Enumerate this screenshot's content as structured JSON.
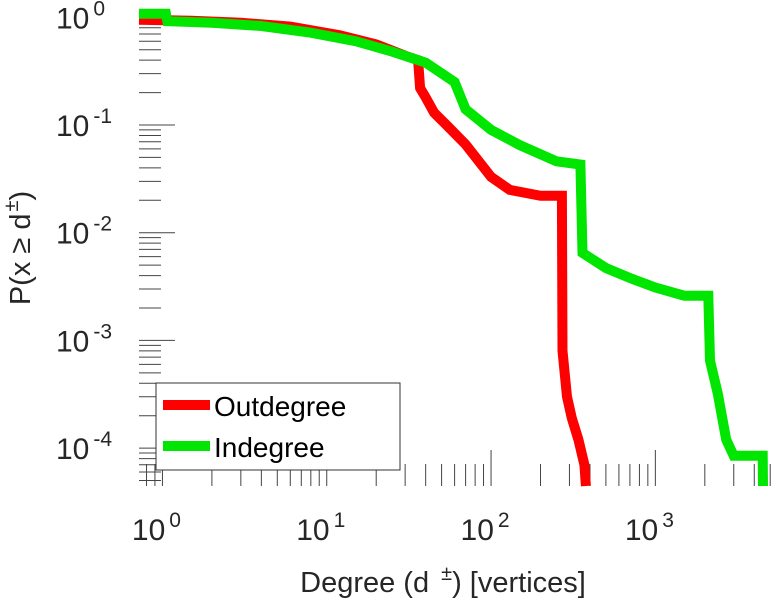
{
  "chart_data": {
    "type": "line",
    "xlabel": {
      "base": "Degree (d",
      "sup": "±",
      "tail": ") [vertices]"
    },
    "ylabel": {
      "base": "P(x ≥ d",
      "sup": "±",
      "tail": ")"
    },
    "x_scale": "log",
    "y_scale": "log",
    "xlim": [
      0.72,
      5500
    ],
    "ylim": [
      4.45e-05,
      1.22
    ],
    "grid": false,
    "legend_position": "bottom-left",
    "x_ticks": [
      {
        "value": 1,
        "base": "10",
        "exp": "0"
      },
      {
        "value": 10,
        "base": "10",
        "exp": "1"
      },
      {
        "value": 100,
        "base": "10",
        "exp": "2"
      },
      {
        "value": 1000,
        "base": "10",
        "exp": "3"
      }
    ],
    "y_ticks": [
      {
        "value": 1,
        "base": "10",
        "exp": "0"
      },
      {
        "value": 0.1,
        "base": "10",
        "exp": "-1"
      },
      {
        "value": 0.01,
        "base": "10",
        "exp": "-2"
      },
      {
        "value": 0.001,
        "base": "10",
        "exp": "-3"
      },
      {
        "value": 0.0001,
        "base": "10",
        "exp": "-4"
      }
    ],
    "series": [
      {
        "name": "Outdegree",
        "color": "#ff0000",
        "points": [
          [
            0.72,
            0.95
          ],
          [
            1.5,
            0.93
          ],
          [
            3,
            0.89
          ],
          [
            6,
            0.82
          ],
          [
            12,
            0.68
          ],
          [
            20,
            0.56
          ],
          [
            30,
            0.44
          ],
          [
            36,
            0.4
          ],
          [
            37,
            0.22
          ],
          [
            40,
            0.18
          ],
          [
            45,
            0.13
          ],
          [
            55,
            0.096
          ],
          [
            70,
            0.066
          ],
          [
            100,
            0.033
          ],
          [
            130,
            0.025
          ],
          [
            200,
            0.022
          ],
          [
            270,
            0.022
          ],
          [
            272,
            0.0008
          ],
          [
            290,
            0.0003
          ],
          [
            310,
            0.00019
          ],
          [
            340,
            0.00012
          ],
          [
            370,
            7e-05
          ],
          [
            378,
            4.45e-05
          ]
        ]
      },
      {
        "name": "Indegree",
        "color": "#00e600",
        "points": [
          [
            0.72,
            1.08
          ],
          [
            1.05,
            1.08
          ],
          [
            1.07,
            0.92
          ],
          [
            2,
            0.89
          ],
          [
            4,
            0.83
          ],
          [
            8,
            0.72
          ],
          [
            15,
            0.6
          ],
          [
            25,
            0.48
          ],
          [
            40,
            0.38
          ],
          [
            60,
            0.25
          ],
          [
            70,
            0.14
          ],
          [
            100,
            0.09
          ],
          [
            150,
            0.065
          ],
          [
            250,
            0.046
          ],
          [
            350,
            0.043
          ],
          [
            360,
            0.0065
          ],
          [
            500,
            0.0047
          ],
          [
            700,
            0.0038
          ],
          [
            1000,
            0.0031
          ],
          [
            1500,
            0.0026
          ],
          [
            2100,
            0.0026
          ],
          [
            2150,
            0.00065
          ],
          [
            2400,
            0.00032
          ],
          [
            2700,
            0.00012
          ],
          [
            3000,
            8.5e-05
          ],
          [
            4500,
            8.5e-05
          ],
          [
            4520,
            4.45e-05
          ]
        ]
      }
    ]
  }
}
